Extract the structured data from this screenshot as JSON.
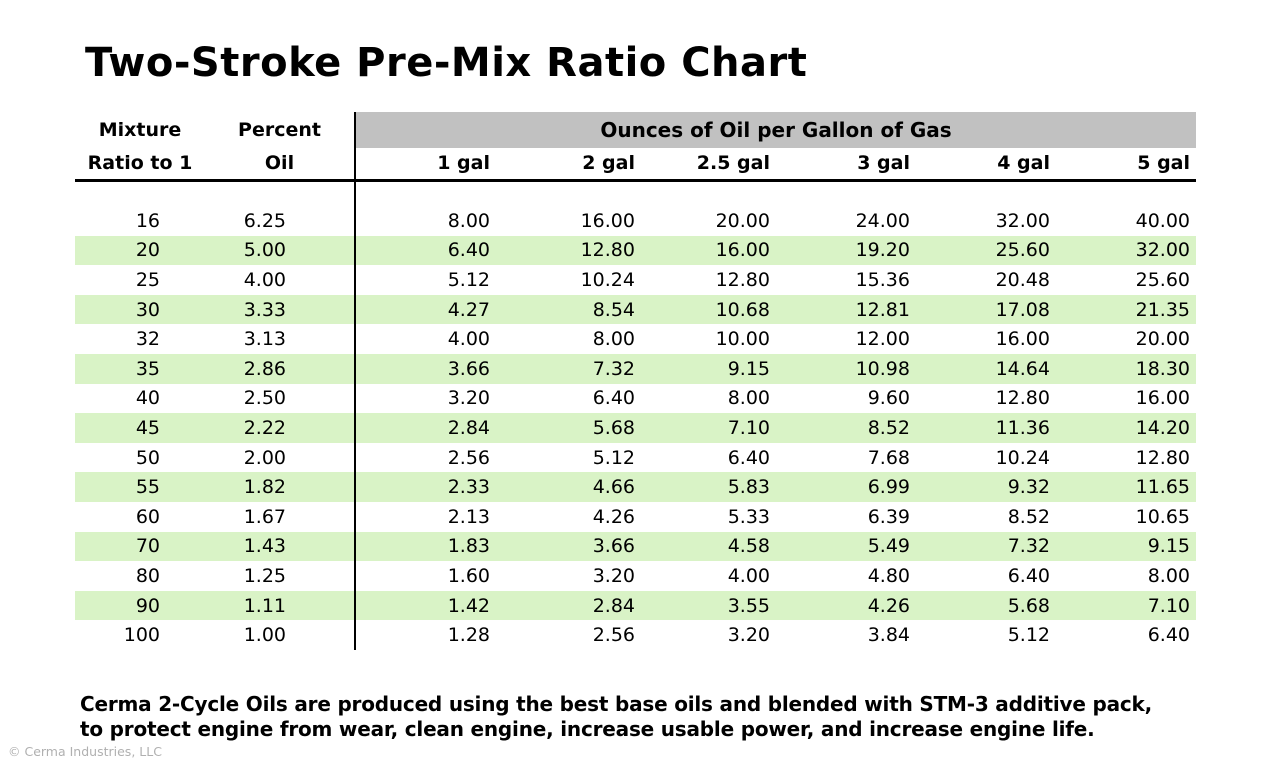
{
  "page": {
    "title": "Two-Stroke Pre-Mix Ratio Chart",
    "footer_line1": "Cerma 2-Cycle Oils are produced using the best base oils and blended with STM-3 additive pack,",
    "footer_line2": "to protect engine from wear, clean engine, increase usable power, and increase engine life.",
    "copyright": "© Cerma Industries, LLC"
  },
  "table": {
    "ratio_header_line1": "Mixture",
    "ratio_header_line2": "Ratio to 1",
    "percent_header_line1": "Percent",
    "percent_header_line2": "Oil",
    "banner": "Ounces of Oil per Gallon of Gas",
    "gal_headers": [
      "1 gal",
      "2 gal",
      "2.5 gal",
      "3 gal",
      "4 gal",
      "5 gal"
    ]
  },
  "chart_data": {
    "type": "table",
    "title": "Two-Stroke Pre-Mix Ratio Chart",
    "group_header": "Ounces of Oil per Gallon of Gas",
    "columns": [
      "Mixture Ratio to 1",
      "Percent Oil",
      "1 gal",
      "2 gal",
      "2.5 gal",
      "3 gal",
      "4 gal",
      "5 gal"
    ],
    "rows": [
      [
        16,
        6.25,
        8.0,
        16.0,
        20.0,
        24.0,
        32.0,
        40.0
      ],
      [
        20,
        5.0,
        6.4,
        12.8,
        16.0,
        19.2,
        25.6,
        32.0
      ],
      [
        25,
        4.0,
        5.12,
        10.24,
        12.8,
        15.36,
        20.48,
        25.6
      ],
      [
        30,
        3.33,
        4.27,
        8.54,
        10.68,
        12.81,
        17.08,
        21.35
      ],
      [
        32,
        3.13,
        4.0,
        8.0,
        10.0,
        12.0,
        16.0,
        20.0
      ],
      [
        35,
        2.86,
        3.66,
        7.32,
        9.15,
        10.98,
        14.64,
        18.3
      ],
      [
        40,
        2.5,
        3.2,
        6.4,
        8.0,
        9.6,
        12.8,
        16.0
      ],
      [
        45,
        2.22,
        2.84,
        5.68,
        7.1,
        8.52,
        11.36,
        14.2
      ],
      [
        50,
        2.0,
        2.56,
        5.12,
        6.4,
        7.68,
        10.24,
        12.8
      ],
      [
        55,
        1.82,
        2.33,
        4.66,
        5.83,
        6.99,
        9.32,
        11.65
      ],
      [
        60,
        1.67,
        2.13,
        4.26,
        5.33,
        6.39,
        8.52,
        10.65
      ],
      [
        70,
        1.43,
        1.83,
        3.66,
        4.58,
        5.49,
        7.32,
        9.15
      ],
      [
        80,
        1.25,
        1.6,
        3.2,
        4.0,
        4.8,
        6.4,
        8.0
      ],
      [
        90,
        1.11,
        1.42,
        2.84,
        3.55,
        4.26,
        5.68,
        7.1
      ],
      [
        100,
        1.0,
        1.28,
        2.56,
        3.2,
        3.84,
        5.12,
        6.4
      ]
    ],
    "highlighted_ratios": [
      20,
      30,
      35,
      45,
      55,
      70,
      90
    ],
    "legend_position": "none",
    "grid": false
  },
  "colors": {
    "row_highlight": "#d9f3c6",
    "banner_bg": "#c1c1c1",
    "text": "#000000",
    "copyright": "#b0b0b0"
  }
}
